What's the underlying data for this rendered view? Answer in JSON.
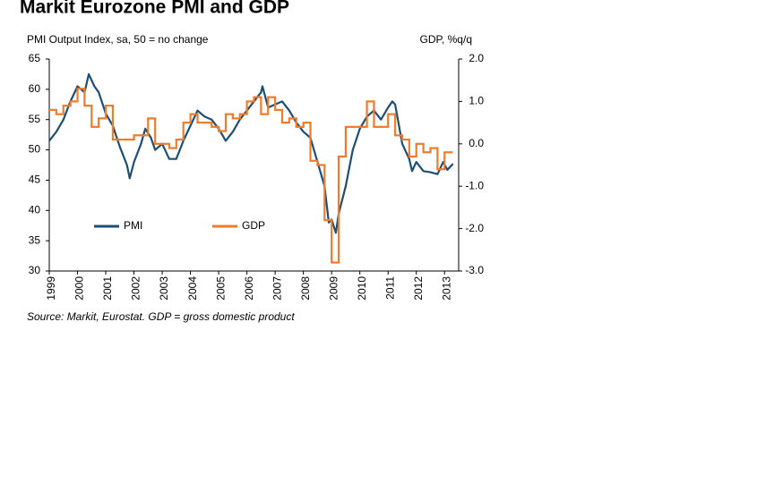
{
  "chart_data": {
    "type": "line",
    "title": "Markit Eurozone PMI and GDP",
    "y_label": "PMI Output Index, sa, 50 = no change",
    "y2_label": "GDP, %q/q",
    "source": "Source: Markit, Eurostat. GDP = gross domestic product",
    "xlim": [
      1999,
      2013.5
    ],
    "xticks": [
      1999,
      2000,
      2001,
      2002,
      2003,
      2004,
      2005,
      2006,
      2007,
      2008,
      2009,
      2010,
      2011,
      2012,
      2013
    ],
    "ylim": [
      30,
      65
    ],
    "yticks": [
      30,
      35,
      40,
      45,
      50,
      55,
      60,
      65
    ],
    "y2lim": [
      -3,
      2
    ],
    "y2ticks": [
      {
        "value": -3,
        "label": "-3.0"
      },
      {
        "value": -2,
        "label": "-2.0"
      },
      {
        "value": -1,
        "label": "-1.0"
      },
      {
        "value": 0,
        "label": "0.0"
      },
      {
        "value": 1,
        "label": "1.0"
      },
      {
        "value": 2,
        "label": "2.0"
      }
    ],
    "grid": false,
    "series": [
      {
        "name": "PMI",
        "color": "#1d4f73",
        "style": "line",
        "x": [
          1999.0,
          1999.25,
          1999.5,
          1999.75,
          2000.0,
          2000.25,
          2000.4,
          2000.6,
          2000.75,
          2001.0,
          2001.25,
          2001.5,
          2001.75,
          2001.85,
          2002.0,
          2002.25,
          2002.4,
          2002.6,
          2002.75,
          2003.0,
          2003.25,
          2003.5,
          2003.75,
          2004.0,
          2004.25,
          2004.5,
          2004.75,
          2005.0,
          2005.25,
          2005.5,
          2005.75,
          2006.0,
          2006.25,
          2006.5,
          2006.55,
          2006.75,
          2007.0,
          2007.25,
          2007.5,
          2007.75,
          2008.0,
          2008.25,
          2008.5,
          2008.75,
          2008.9,
          2009.0,
          2009.15,
          2009.25,
          2009.5,
          2009.75,
          2010.0,
          2010.25,
          2010.5,
          2010.75,
          2011.0,
          2011.15,
          2011.25,
          2011.5,
          2011.75,
          2011.85,
          2012.0,
          2012.25,
          2012.5,
          2012.75,
          2012.95,
          2013.1,
          2013.3
        ],
        "values": [
          51.5,
          53,
          55,
          58,
          60.5,
          59.5,
          62.5,
          60.5,
          59.5,
          56,
          54,
          50.5,
          47.5,
          45.3,
          48,
          51,
          53.5,
          52,
          50,
          51,
          48.5,
          48.5,
          51.5,
          54,
          56.5,
          55.5,
          55,
          53.5,
          51.5,
          53,
          55,
          56.5,
          58,
          59.5,
          60.5,
          57,
          57.5,
          58,
          56.5,
          54.5,
          53,
          52,
          48,
          44,
          38,
          38.5,
          36.3,
          39.5,
          44,
          50,
          53.5,
          55.5,
          56.5,
          55,
          57,
          58,
          57.5,
          51,
          48.5,
          46.5,
          48,
          46.5,
          46.3,
          46,
          48,
          46.7,
          47.7
        ]
      },
      {
        "name": "GDP",
        "color": "#f07b2a",
        "style": "step",
        "axis": "y2",
        "x": [
          1999.0,
          1999.25,
          1999.5,
          1999.75,
          2000.0,
          2000.25,
          2000.5,
          2000.75,
          2001.0,
          2001.25,
          2001.5,
          2001.75,
          2002.0,
          2002.25,
          2002.5,
          2002.75,
          2003.0,
          2003.25,
          2003.5,
          2003.75,
          2004.0,
          2004.25,
          2004.5,
          2004.75,
          2005.0,
          2005.25,
          2005.5,
          2005.75,
          2006.0,
          2006.25,
          2006.5,
          2006.75,
          2007.0,
          2007.25,
          2007.5,
          2007.75,
          2008.0,
          2008.25,
          2008.5,
          2008.75,
          2009.0,
          2009.25,
          2009.5,
          2009.75,
          2010.0,
          2010.25,
          2010.5,
          2010.75,
          2011.0,
          2011.25,
          2011.5,
          2011.75,
          2012.0,
          2012.25,
          2012.5,
          2012.75,
          2013.0
        ],
        "values": [
          0.8,
          0.7,
          0.9,
          1.0,
          1.3,
          0.9,
          0.4,
          0.6,
          0.9,
          0.1,
          0.1,
          0.1,
          0.2,
          0.2,
          0.6,
          0.0,
          0.0,
          -0.1,
          0.1,
          0.5,
          0.7,
          0.5,
          0.5,
          0.4,
          0.3,
          0.7,
          0.6,
          0.7,
          1.0,
          1.1,
          0.7,
          1.1,
          0.8,
          0.5,
          0.6,
          0.4,
          0.5,
          -0.4,
          -0.5,
          -1.8,
          -2.8,
          -0.3,
          0.4,
          0.4,
          0.4,
          1.0,
          0.4,
          0.4,
          0.7,
          0.2,
          0.1,
          -0.3,
          0.0,
          -0.2,
          -0.1,
          -0.6,
          -0.2
        ]
      }
    ]
  }
}
